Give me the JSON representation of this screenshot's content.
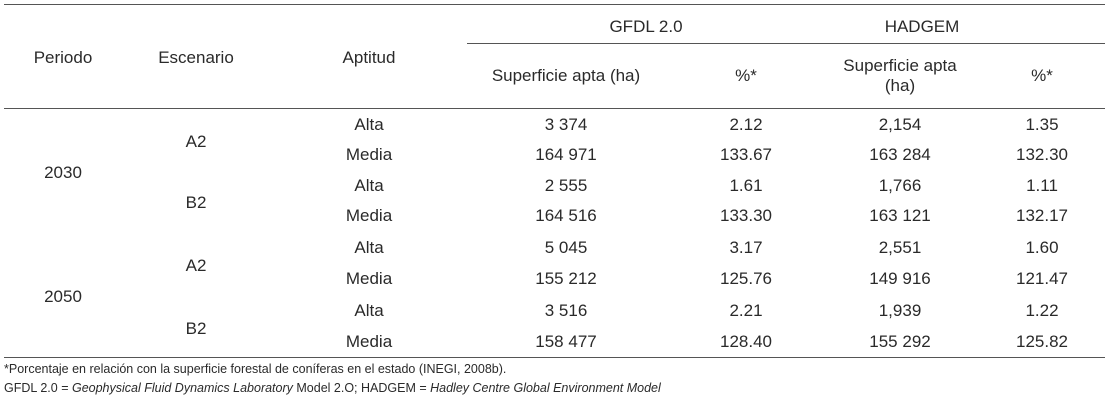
{
  "table": {
    "groups": [
      "GFDL 2.0",
      "HADGEM"
    ],
    "headers": [
      "Periodo",
      "Escenario",
      "Aptitud",
      "Superficie apta (ha)",
      "%*",
      "Superficie apta (ha)",
      "%*"
    ],
    "periods": [
      {
        "period": "2030",
        "scenarios": [
          {
            "name": "A2",
            "rows": [
              [
                "Alta",
                "3 374",
                "2.12",
                "2,154",
                "1.35"
              ],
              [
                "Media",
                "164 971",
                "133.67",
                "163 284",
                "132.30"
              ]
            ]
          },
          {
            "name": "B2",
            "rows": [
              [
                "Alta",
                "2 555",
                "1.61",
                "1,766",
                "1.11"
              ],
              [
                "Media",
                "164 516",
                "133.30",
                "163 121",
                "132.17"
              ]
            ]
          }
        ]
      },
      {
        "period": "2050",
        "scenarios": [
          {
            "name": "A2",
            "rows": [
              [
                "Alta",
                "5 045",
                "3.17",
                "2,551",
                "1.60"
              ],
              [
                "Media",
                "155 212",
                "125.76",
                "149 916",
                "121.47"
              ]
            ]
          },
          {
            "name": "B2",
            "rows": [
              [
                "Alta",
                "3 516",
                "2.21",
                "1,939",
                "1.22"
              ],
              [
                "Media",
                "158 477",
                "128.40",
                "155 292",
                "125.82"
              ]
            ]
          }
        ]
      }
    ],
    "notes": [
      [
        "*Porcentaje en relación con la superficie forestal de coníferas en el estado (INEGI, 2008b)."
      ],
      [
        "GFDL 2.0 = ",
        "Geophysical Fluid Dynamics Laboratory",
        " Model 2.O; HADGEM = ",
        "Hadley Centre Global Environment Model"
      ]
    ]
  }
}
